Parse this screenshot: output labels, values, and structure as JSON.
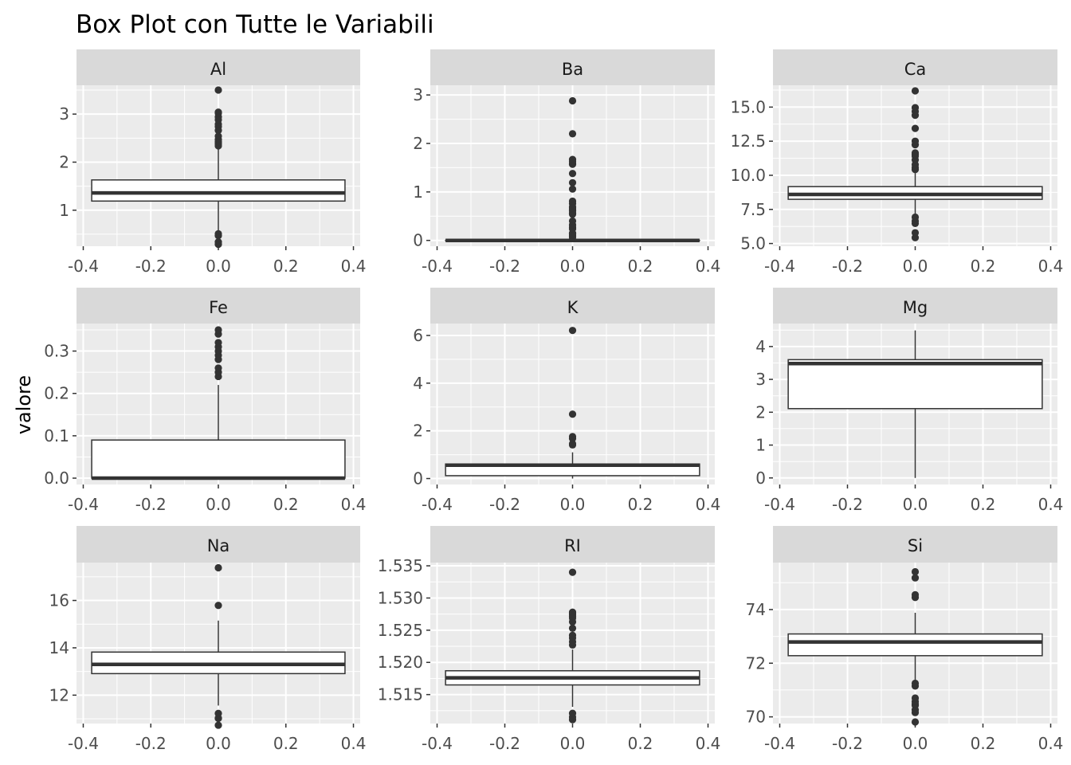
{
  "chart_data": {
    "type": "boxplot",
    "title": "Box Plot con Tutte le Variabili",
    "ylabel": "valore",
    "xlabel": "",
    "layout": "facet-grid-3x3",
    "grid": true,
    "legend": "none",
    "colors": {
      "panel_bg": "#ebebeb",
      "strip_bg": "#d9d9d9",
      "grid": "#ffffff",
      "box_fill": "#ffffff",
      "box_line": "#333333",
      "point": "#333333",
      "tick_text": "#4d4d4d"
    },
    "x_axis": {
      "range": [
        -0.42,
        0.42
      ],
      "ticks": [
        -0.4,
        -0.2,
        0.0,
        0.2,
        0.4
      ],
      "tick_labels": [
        "-0.4",
        "-0.2",
        "0.0",
        "0.2",
        "0.4"
      ]
    },
    "facets": [
      {
        "name": "Al",
        "ylim": [
          0.25,
          3.6
        ],
        "y_ticks": [
          1,
          2,
          3
        ],
        "y_tick_labels": [
          "1",
          "2",
          "3"
        ],
        "box": {
          "q1": 1.19,
          "median": 1.36,
          "q3": 1.63
        },
        "whiskers": [
          0.56,
          2.29
        ],
        "outliers": [
          0.29,
          0.34,
          0.47,
          0.51,
          2.34,
          2.38,
          2.42,
          2.47,
          2.54,
          2.66,
          2.74,
          2.79,
          2.88,
          2.94,
          3.02,
          3.04,
          3.5
        ],
        "x_box": [
          -0.375,
          0.375
        ]
      },
      {
        "name": "Ba",
        "ylim": [
          -0.12,
          3.2
        ],
        "y_ticks": [
          0,
          1,
          2,
          3
        ],
        "y_tick_labels": [
          "0",
          "1",
          "2",
          "3"
        ],
        "box": {
          "q1": 0.0,
          "median": 0.0,
          "q3": 0.0
        },
        "whiskers": [
          0.0,
          0.0
        ],
        "outliers": [
          0.06,
          0.09,
          0.11,
          0.14,
          0.15,
          0.24,
          0.27,
          0.32,
          0.4,
          0.54,
          0.56,
          0.61,
          0.64,
          0.67,
          0.69,
          0.76,
          0.81,
          1.06,
          1.19,
          1.38,
          1.57,
          1.59,
          1.63,
          1.67,
          2.2,
          2.88
        ],
        "x_box": [
          -0.375,
          0.375
        ]
      },
      {
        "name": "Ca",
        "ylim": [
          4.8,
          16.6
        ],
        "y_ticks": [
          5.0,
          7.5,
          10.0,
          12.5,
          15.0
        ],
        "y_tick_labels": [
          "5.0",
          "7.5",
          "10.0",
          "12.5",
          "15.0"
        ],
        "box": {
          "q1": 8.24,
          "median": 8.6,
          "q3": 9.17
        },
        "whiskers": [
          7.08,
          10.17
        ],
        "outliers": [
          5.43,
          5.79,
          6.47,
          6.65,
          6.93,
          10.42,
          10.56,
          10.79,
          11.14,
          11.41,
          11.53,
          11.64,
          12.24,
          12.5,
          13.44,
          14.4,
          14.68,
          14.96,
          16.19
        ],
        "x_box": [
          -0.375,
          0.375
        ]
      },
      {
        "name": "Fe",
        "ylim": [
          -0.015,
          0.365
        ],
        "y_ticks": [
          0.0,
          0.1,
          0.2,
          0.3
        ],
        "y_tick_labels": [
          "0.0",
          "0.1",
          "0.2",
          "0.3"
        ],
        "box": {
          "q1": 0.0,
          "median": 0.0,
          "q3": 0.09
        },
        "whiskers": [
          0.0,
          0.22
        ],
        "outliers": [
          0.24,
          0.25,
          0.26,
          0.28,
          0.29,
          0.3,
          0.31,
          0.32,
          0.34,
          0.35
        ],
        "x_box": [
          -0.375,
          0.375
        ]
      },
      {
        "name": "K",
        "ylim": [
          -0.25,
          6.5
        ],
        "y_ticks": [
          0,
          2,
          4,
          6
        ],
        "y_tick_labels": [
          "0",
          "2",
          "4",
          "6"
        ],
        "box": {
          "q1": 0.12,
          "median": 0.56,
          "q3": 0.61
        },
        "whiskers": [
          0.0,
          1.1
        ],
        "outliers": [
          1.41,
          1.46,
          1.68,
          1.76,
          2.7,
          6.21
        ],
        "x_box": [
          -0.375,
          0.375
        ]
      },
      {
        "name": "Mg",
        "ylim": [
          -0.2,
          4.7
        ],
        "y_ticks": [
          0,
          1,
          2,
          3,
          4
        ],
        "y_tick_labels": [
          "0",
          "1",
          "2",
          "3",
          "4"
        ],
        "box": {
          "q1": 2.11,
          "median": 3.48,
          "q3": 3.6
        },
        "whiskers": [
          0.0,
          4.49
        ],
        "outliers": [],
        "x_box": [
          -0.375,
          0.375
        ]
      },
      {
        "name": "Na",
        "ylim": [
          10.8,
          17.6
        ],
        "y_ticks": [
          12,
          14,
          16
        ],
        "y_tick_labels": [
          "12",
          "14",
          "16"
        ],
        "box": {
          "q1": 12.91,
          "median": 13.3,
          "q3": 13.82
        },
        "whiskers": [
          11.56,
          15.15
        ],
        "outliers": [
          10.73,
          11.02,
          11.03,
          11.23,
          15.79,
          17.38
        ],
        "x_box": [
          -0.375,
          0.375
        ]
      },
      {
        "name": "RI",
        "ylim": [
          1.5105,
          1.5355
        ],
        "y_ticks": [
          1.515,
          1.52,
          1.525,
          1.53,
          1.535
        ],
        "y_tick_labels": [
          "1.515",
          "1.520",
          "1.525",
          "1.530",
          "1.535"
        ],
        "box": {
          "q1": 1.5165,
          "median": 1.5176,
          "q3": 1.5187
        },
        "whiskers": [
          1.5131,
          1.522
        ],
        "outliers": [
          1.5111,
          1.5115,
          1.5121,
          1.5227,
          1.5232,
          1.5238,
          1.5242,
          1.5253,
          1.5263,
          1.5269,
          1.5272,
          1.5275,
          1.5278,
          1.534
        ],
        "x_box": [
          -0.375,
          0.375
        ]
      },
      {
        "name": "Si",
        "ylim": [
          69.75,
          75.75
        ],
        "y_ticks": [
          70,
          72,
          74
        ],
        "y_tick_labels": [
          "70",
          "72",
          "74"
        ],
        "box": {
          "q1": 72.28,
          "median": 72.79,
          "q3": 73.09
        },
        "whiskers": [
          71.36,
          73.88
        ],
        "outliers": [
          69.81,
          70.16,
          70.26,
          70.43,
          70.48,
          70.57,
          70.7,
          71.15,
          71.25,
          74.45,
          74.55,
          75.18,
          75.41
        ],
        "x_box": [
          -0.375,
          0.375
        ]
      }
    ]
  }
}
